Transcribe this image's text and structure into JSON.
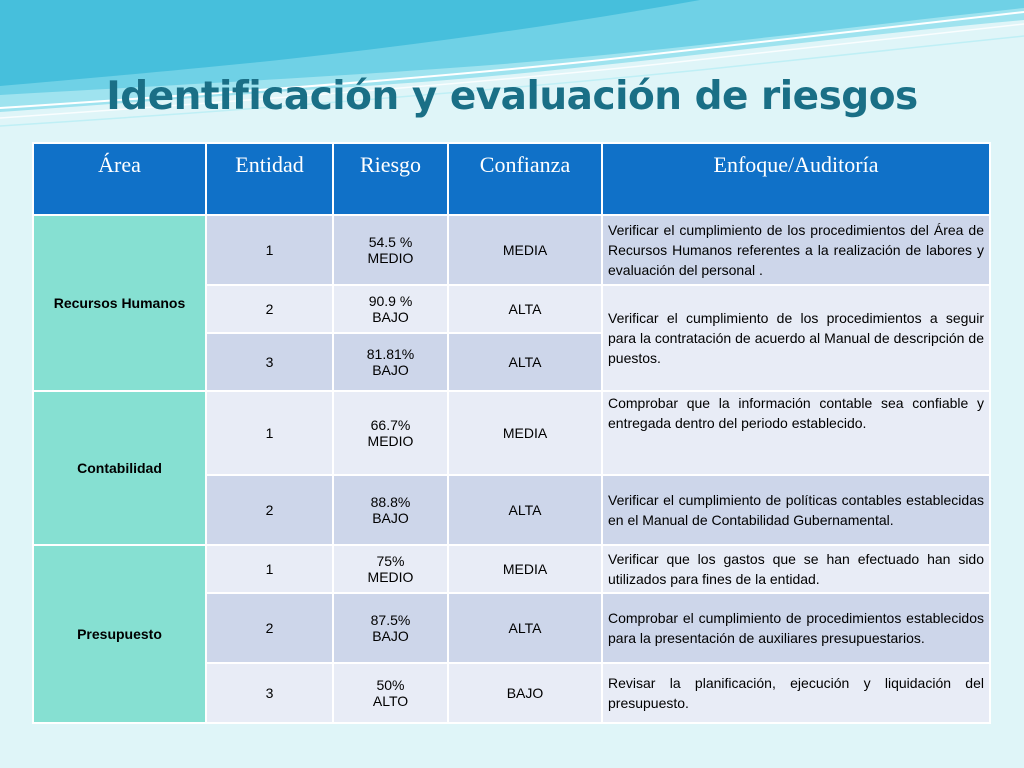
{
  "title": "Identificación y evaluación de riesgos",
  "columns": [
    "Área",
    "Entidad",
    "Riesgo",
    "Confianza",
    "Enfoque/Auditoría"
  ],
  "groups": [
    {
      "area": "Recursos Humanos",
      "rows": [
        {
          "entidad": "1",
          "riesgo_pct": "54.5 %",
          "riesgo_nivel": "MEDIO",
          "confianza": "MEDIA",
          "enfoque": "Verificar el cumplimiento de los procedimientos del Área de Recursos Humanos referentes a la realización de labores y evaluación del personal ."
        },
        {
          "entidad": "2",
          "riesgo_pct": "90.9 %",
          "riesgo_nivel": "BAJO",
          "confianza": "ALTA",
          "enfoque": "Verificar el cumplimiento de los procedimientos a seguir para la contratación de acuerdo al Manual de descripción de puestos."
        },
        {
          "entidad": "3",
          "riesgo_pct": "81.81%",
          "riesgo_nivel": "BAJO",
          "confianza": "ALTA"
        }
      ]
    },
    {
      "area": "Contabilidad",
      "rows": [
        {
          "entidad": "1",
          "riesgo_pct": "66.7%",
          "riesgo_nivel": "MEDIO",
          "confianza": "MEDIA",
          "enfoque": "Comprobar que la información contable  sea confiable y entregada dentro del periodo establecido."
        },
        {
          "entidad": "2",
          "riesgo_pct": "88.8%",
          "riesgo_nivel": "BAJO",
          "confianza": "ALTA",
          "enfoque": "Verificar el cumplimiento de políticas contables establecidas en el Manual de Contabilidad Gubernamental."
        }
      ]
    },
    {
      "area": "Presupuesto",
      "rows": [
        {
          "entidad": "1",
          "riesgo_pct": "75%",
          "riesgo_nivel": "MEDIO",
          "confianza": "MEDIA",
          "enfoque": "Verificar que los gastos que se han efectuado han sido utilizados para fines de la entidad."
        },
        {
          "entidad": "2",
          "riesgo_pct": "87.5%",
          "riesgo_nivel": "BAJO",
          "confianza": "ALTA",
          "enfoque": "Comprobar el cumplimiento de procedimientos establecidos para la presentación de auxiliares presupuestarios."
        },
        {
          "entidad": "3",
          "riesgo_pct": "50%",
          "riesgo_nivel": "ALTO",
          "confianza": "BAJO",
          "enfoque": "Revisar la planificación, ejecución y liquidación del presupuesto."
        }
      ]
    }
  ],
  "colors": {
    "header": "#1071c8",
    "area": "#86e0d2",
    "title": "#1a6f86",
    "row_dark": "#cdd6ea",
    "row_light": "#e8ecf6"
  }
}
